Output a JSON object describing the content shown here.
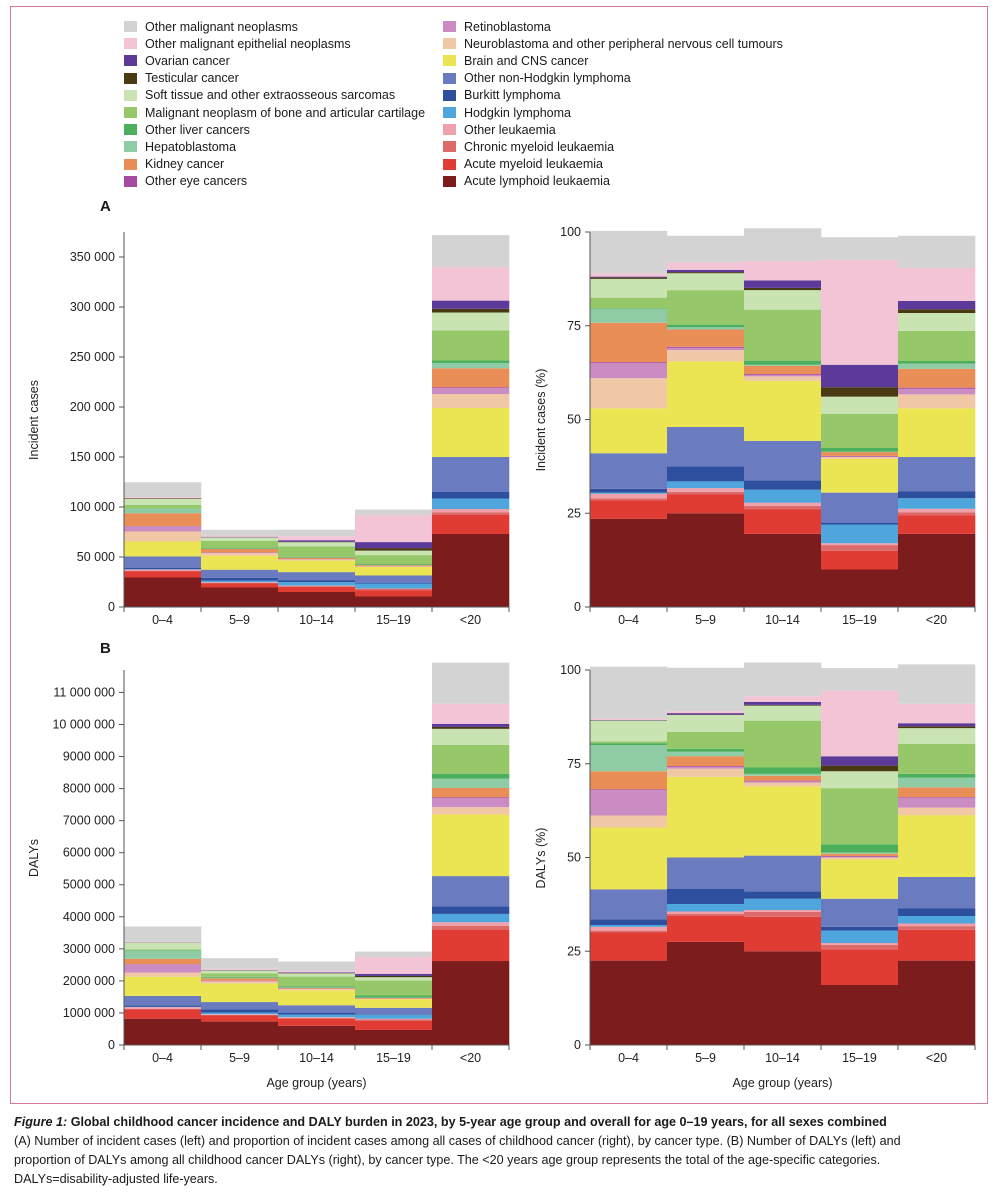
{
  "figure": {
    "label": "Figure 1:",
    "title": "Global childhood cancer incidence and DALY burden in 2023, by 5-year age group and overall for age 0–19 years, for all sexes combined",
    "body_line1": "(A) Number of incident cases (left) and proportion of incident cases among all cases of childhood cancer (right), by cancer type. (B) Number of DALYs (left) and",
    "body_line2": "proportion of DALYs among all childhood cancer DALYs (right), by cancer type. The <20 years age group represents the total of the age-specific categories.",
    "body_line3": "DALYs=disability-adjusted life-years."
  },
  "panels": {
    "a_label": "A",
    "b_label": "B"
  },
  "legend": [
    {
      "name": "Other malignant neoplasms",
      "color": "#d3d3d3"
    },
    {
      "name": "Other malignant epithelial neoplasms",
      "color": "#f2c4d6"
    },
    {
      "name": "Ovarian cancer",
      "color": "#5b3a9a"
    },
    {
      "name": "Testicular cancer",
      "color": "#4a3a14"
    },
    {
      "name": "Soft tissue and other extraosseous sarcomas",
      "color": "#c9e3b3"
    },
    {
      "name": "Malignant neoplasm of bone and articular cartilage",
      "color": "#96c86a"
    },
    {
      "name": "Other liver cancers",
      "color": "#4caf5e"
    },
    {
      "name": "Hepatoblastoma",
      "color": "#8fcba5"
    },
    {
      "name": "Kidney cancer",
      "color": "#e98e57"
    },
    {
      "name": "Other eye cancers",
      "color": "#a64a9e"
    },
    {
      "name": "Retinoblastoma",
      "color": "#cb8cc4"
    },
    {
      "name": "Neuroblastoma and other peripheral nervous cell tumours",
      "color": "#f0c8a5"
    },
    {
      "name": "Brain and CNS cancer",
      "color": "#ebe453"
    },
    {
      "name": "Other non-Hodgkin lymphoma",
      "color": "#6a7bbf"
    },
    {
      "name": "Burkitt lymphoma",
      "color": "#2d4f9e"
    },
    {
      "name": "Hodgkin lymphoma",
      "color": "#4ea6dc"
    },
    {
      "name": "Other leukaemia",
      "color": "#f0a0aa"
    },
    {
      "name": "Chronic myeloid leukaemia",
      "color": "#dc6a6a"
    },
    {
      "name": "Acute myeloid leukaemia",
      "color": "#e03c34"
    },
    {
      "name": "Acute lymphoid leukaemia",
      "color": "#7d1c1c"
    }
  ],
  "chart_data": [
    {
      "id": "A-left",
      "type": "bar",
      "stacked": true,
      "title": "",
      "xlabel": "",
      "ylabel": "Incident cases",
      "categories": [
        "0–4",
        "5–9",
        "10–14",
        "15–19",
        "<20"
      ],
      "ylim": [
        0,
        375000
      ],
      "ticks": [
        0,
        50000,
        100000,
        150000,
        200000,
        250000,
        300000,
        350000
      ],
      "tick_labels": [
        "0",
        "50 000",
        "100 000",
        "150 000",
        "200 000",
        "250 000",
        "300 000",
        "350 000"
      ],
      "series": [
        {
          "name": "Acute lymphoid leukaemia",
          "values": [
            29500,
            19500,
            15000,
            10500,
            73000
          ]
        },
        {
          "name": "Acute myeloid leukaemia",
          "values": [
            6000,
            4000,
            5000,
            6000,
            19000
          ]
        },
        {
          "name": "Chronic myeloid leukaemia",
          "values": [
            500,
            500,
            800,
            1500,
            2500
          ]
        },
        {
          "name": "Other leukaemia",
          "values": [
            1500,
            800,
            600,
            500,
            3500
          ]
        },
        {
          "name": "Hodgkin lymphoma",
          "values": [
            500,
            1500,
            3500,
            5000,
            10500
          ]
        },
        {
          "name": "Burkitt lymphoma",
          "values": [
            1000,
            3000,
            2000,
            500,
            6500
          ]
        },
        {
          "name": "Other non-Hodgkin lymphoma",
          "values": [
            11500,
            8000,
            8000,
            7500,
            35000
          ]
        },
        {
          "name": "Brain and CNS cancer",
          "values": [
            15000,
            14000,
            11500,
            8500,
            49000
          ]
        },
        {
          "name": "Neuroblastoma and other peripheral nervous cell tumours",
          "values": [
            10000,
            2500,
            1000,
            500,
            14000
          ]
        },
        {
          "name": "Retinoblastoma",
          "values": [
            5000,
            500,
            200,
            100,
            5800
          ]
        },
        {
          "name": "Other eye cancers",
          "values": [
            300,
            200,
            200,
            200,
            900
          ]
        },
        {
          "name": "Kidney cancer",
          "values": [
            13000,
            3500,
            1500,
            1000,
            19000
          ]
        },
        {
          "name": "Hepatoblastoma",
          "values": [
            4500,
            500,
            200,
            100,
            5300
          ]
        },
        {
          "name": "Other liver cancers",
          "values": [
            200,
            500,
            800,
            1000,
            2500
          ]
        },
        {
          "name": "Malignant neoplasm of bone and articular cartilage",
          "values": [
            3500,
            7000,
            10500,
            9000,
            30000
          ]
        },
        {
          "name": "Soft tissue and other extraosseous sarcomas",
          "values": [
            6000,
            3500,
            4000,
            4500,
            18000
          ]
        },
        {
          "name": "Testicular cancer",
          "values": [
            500,
            200,
            500,
            2500,
            3700
          ]
        },
        {
          "name": "Ovarian cancer",
          "values": [
            200,
            500,
            1500,
            6000,
            8200
          ]
        },
        {
          "name": "Other malignant epithelial neoplasms",
          "values": [
            1000,
            1500,
            4000,
            27000,
            33500
          ]
        },
        {
          "name": "Other malignant neoplasms",
          "values": [
            15000,
            5500,
            6500,
            5500,
            32000
          ]
        }
      ]
    },
    {
      "id": "A-right",
      "type": "bar",
      "stacked": true,
      "title": "",
      "xlabel": "",
      "ylabel": "Incident cases (%)",
      "categories": [
        "0–4",
        "5–9",
        "10–14",
        "15–19",
        "<20"
      ],
      "ylim": [
        0,
        100
      ],
      "ticks": [
        0,
        25,
        50,
        75,
        100
      ],
      "tick_labels": [
        "0",
        "25",
        "50",
        "75",
        "100"
      ],
      "series": [
        {
          "name": "Acute lymphoid leukaemia",
          "values": [
            23.5,
            25,
            19.5,
            10,
            19.5
          ]
        },
        {
          "name": "Acute myeloid leukaemia",
          "values": [
            5,
            5,
            6.5,
            5,
            5
          ]
        },
        {
          "name": "Chronic myeloid leukaemia",
          "values": [
            0.5,
            0.7,
            1,
            1.5,
            0.7
          ]
        },
        {
          "name": "Other leukaemia",
          "values": [
            1.2,
            1,
            0.8,
            0.5,
            1
          ]
        },
        {
          "name": "Hodgkin lymphoma",
          "values": [
            0.3,
            1.8,
            3.5,
            5,
            2.8
          ]
        },
        {
          "name": "Burkitt lymphoma",
          "values": [
            1,
            4,
            2.5,
            0.5,
            1.8
          ]
        },
        {
          "name": "Other non-Hodgkin lymphoma",
          "values": [
            9.5,
            10.5,
            10.5,
            8,
            9.2
          ]
        },
        {
          "name": "Brain and CNS cancer",
          "values": [
            12,
            17.5,
            16,
            9,
            13
          ]
        },
        {
          "name": "Neuroblastoma and other peripheral nervous cell tumours",
          "values": [
            8,
            3,
            1.2,
            0.5,
            3.7
          ]
        },
        {
          "name": "Retinoblastoma",
          "values": [
            4,
            0.6,
            0.3,
            0.1,
            1.5
          ]
        },
        {
          "name": "Other eye cancers",
          "values": [
            0.3,
            0.3,
            0.3,
            0.2,
            0.3
          ]
        },
        {
          "name": "Kidney cancer",
          "values": [
            10.5,
            4.6,
            2.2,
            1,
            5
          ]
        },
        {
          "name": "Hepatoblastoma",
          "values": [
            3.7,
            0.6,
            0.3,
            0.1,
            1.4
          ]
        },
        {
          "name": "Other liver cancers",
          "values": [
            0.2,
            0.7,
            1.1,
            1,
            0.7
          ]
        },
        {
          "name": "Malignant neoplasm of bone and articular cartilage",
          "values": [
            2.8,
            9.2,
            13.6,
            9.1,
            8
          ]
        },
        {
          "name": "Soft tissue and other extraosseous sarcomas",
          "values": [
            5,
            4.5,
            5.2,
            4.6,
            4.8
          ]
        },
        {
          "name": "Testicular cancer",
          "values": [
            0.4,
            0.3,
            0.6,
            2.5,
            1
          ]
        },
        {
          "name": "Ovarian cancer",
          "values": [
            0.2,
            0.6,
            2,
            6,
            2.2
          ]
        },
        {
          "name": "Other malignant epithelial neoplasms",
          "values": [
            0.8,
            2,
            5.2,
            28,
            8.8
          ]
        },
        {
          "name": "Other malignant neoplasms",
          "values": [
            11.4,
            7.1,
            8.7,
            6,
            8.6
          ]
        }
      ]
    },
    {
      "id": "B-left",
      "type": "bar",
      "stacked": true,
      "title": "",
      "xlabel": "Age group (years)",
      "ylabel": "DALYs",
      "categories": [
        "0–4",
        "5–9",
        "10–14",
        "15–19",
        "<20"
      ],
      "ylim": [
        0,
        11700000
      ],
      "ticks": [
        0,
        1000000,
        2000000,
        3000000,
        4000000,
        5000000,
        6000000,
        7000000,
        8000000,
        9000000,
        10000000,
        11000000
      ],
      "tick_labels": [
        "0",
        "1000 000",
        "2000 000",
        "3000 000",
        "4000 000",
        "5000 000",
        "6000 000",
        "7000 000",
        "8000 000",
        "9000 000",
        "10 000 000",
        "11 000 000"
      ],
      "series": [
        {
          "name": "Acute lymphoid leukaemia",
          "values": [
            820000,
            730000,
            600000,
            470000,
            2620000
          ]
        },
        {
          "name": "Acute myeloid leukaemia",
          "values": [
            290000,
            190000,
            220000,
            280000,
            980000
          ]
        },
        {
          "name": "Chronic myeloid leukaemia",
          "values": [
            20000,
            20000,
            30000,
            50000,
            120000
          ]
        },
        {
          "name": "Other leukaemia",
          "values": [
            50000,
            20000,
            20000,
            20000,
            110000
          ]
        },
        {
          "name": "Hodgkin lymphoma",
          "values": [
            10000,
            50000,
            80000,
            120000,
            260000
          ]
        },
        {
          "name": "Burkitt lymphoma",
          "values": [
            50000,
            100000,
            60000,
            20000,
            230000
          ]
        },
        {
          "name": "Other non-Hodgkin lymphoma",
          "values": [
            290000,
            230000,
            230000,
            200000,
            950000
          ]
        },
        {
          "name": "Brain and CNS cancer",
          "values": [
            600000,
            580000,
            470000,
            270000,
            1920000
          ]
        },
        {
          "name": "Neuroblastoma and other peripheral nervous cell tumours",
          "values": [
            130000,
            60000,
            30000,
            10000,
            230000
          ]
        },
        {
          "name": "Retinoblastoma",
          "values": [
            250000,
            20000,
            10000,
            5000,
            285000
          ]
        },
        {
          "name": "Other eye cancers",
          "values": [
            10000,
            5000,
            5000,
            5000,
            25000
          ]
        },
        {
          "name": "Kidney cancer",
          "values": [
            170000,
            70000,
            30000,
            20000,
            290000
          ]
        },
        {
          "name": "Hepatoblastoma",
          "values": [
            250000,
            30000,
            10000,
            5000,
            295000
          ]
        },
        {
          "name": "Other liver cancers",
          "values": [
            20000,
            20000,
            40000,
            70000,
            150000
          ]
        },
        {
          "name": "Malignant neoplasm of bone and articular cartilage",
          "values": [
            20000,
            110000,
            300000,
            470000,
            900000
          ]
        },
        {
          "name": "Soft tissue and other extraosseous sarcomas",
          "values": [
            210000,
            90000,
            100000,
            100000,
            500000
          ]
        },
        {
          "name": "Testicular cancer",
          "values": [
            5000,
            5000,
            10000,
            40000,
            60000
          ]
        },
        {
          "name": "Ovarian cancer",
          "values": [
            5000,
            10000,
            20000,
            60000,
            95000
          ]
        },
        {
          "name": "Other malignant epithelial neoplasms",
          "values": [
            20000,
            40000,
            40000,
            530000,
            630000
          ]
        },
        {
          "name": "Other malignant neoplasms",
          "values": [
            480000,
            330000,
            300000,
            170000,
            1280000
          ]
        }
      ]
    },
    {
      "id": "B-right",
      "type": "bar",
      "stacked": true,
      "title": "",
      "xlabel": "Age group (years)",
      "ylabel": "DALYs (%)",
      "categories": [
        "0–4",
        "5–9",
        "10–14",
        "15–19",
        "<20"
      ],
      "ylim": [
        0,
        100
      ],
      "ticks": [
        0,
        25,
        50,
        75,
        100
      ],
      "tick_labels": [
        "0",
        "25",
        "50",
        "75",
        "100"
      ],
      "series": [
        {
          "name": "Acute lymphoid leukaemia",
          "values": [
            22.5,
            27.5,
            25,
            16,
            22.5
          ]
        },
        {
          "name": "Acute myeloid leukaemia",
          "values": [
            7.5,
            7,
            9.2,
            9.5,
            8.2
          ]
        },
        {
          "name": "Chronic myeloid leukaemia",
          "values": [
            0.5,
            0.5,
            1.3,
            1.2,
            1
          ]
        },
        {
          "name": "Other leukaemia",
          "values": [
            1,
            0.6,
            0.5,
            0.5,
            0.7
          ]
        },
        {
          "name": "Hodgkin lymphoma",
          "values": [
            0.5,
            2,
            3,
            3.3,
            2
          ]
        },
        {
          "name": "Burkitt lymphoma",
          "values": [
            1.5,
            4,
            2,
            1,
            2
          ]
        },
        {
          "name": "Other non-Hodgkin lymphoma",
          "values": [
            8,
            8.4,
            9.5,
            7.5,
            8.4
          ]
        },
        {
          "name": "Brain and CNS cancer",
          "values": [
            16.5,
            21.5,
            18.5,
            10.5,
            16.5
          ]
        },
        {
          "name": "Neuroblastoma and other peripheral nervous cell tumours",
          "values": [
            3.2,
            2.2,
            1,
            0.5,
            2
          ]
        },
        {
          "name": "Retinoblastoma",
          "values": [
            6.8,
            0.5,
            0.3,
            0.2,
            2.6
          ]
        },
        {
          "name": "Other eye cancers",
          "values": [
            0.2,
            0.2,
            0.2,
            0.2,
            0.2
          ]
        },
        {
          "name": "Kidney cancer",
          "values": [
            4.8,
            2.6,
            1.3,
            0.6,
            2.6
          ]
        },
        {
          "name": "Hepatoblastoma",
          "values": [
            7,
            1.2,
            0.5,
            0.3,
            2.6
          ]
        },
        {
          "name": "Other liver cancers",
          "values": [
            0.5,
            0.8,
            1.7,
            2.2,
            1
          ]
        },
        {
          "name": "Malignant neoplasm of bone and articular cartilage",
          "values": [
            0.5,
            4.5,
            12.5,
            15,
            8
          ]
        },
        {
          "name": "Soft tissue and other extraosseous sarcomas",
          "values": [
            5.5,
            4.5,
            4,
            4.5,
            4.2
          ]
        },
        {
          "name": "Testicular cancer",
          "values": [
            0.1,
            0.1,
            0.2,
            1.5,
            0.5
          ]
        },
        {
          "name": "Ovarian cancer",
          "values": [
            0.1,
            0.4,
            0.8,
            2.5,
            0.8
          ]
        },
        {
          "name": "Other malignant epithelial neoplasms",
          "values": [
            0.4,
            0.5,
            1.5,
            17.5,
            5.2
          ]
        },
        {
          "name": "Other malignant neoplasms",
          "values": [
            13.8,
            11.6,
            9,
            6,
            10.5
          ]
        }
      ]
    }
  ]
}
